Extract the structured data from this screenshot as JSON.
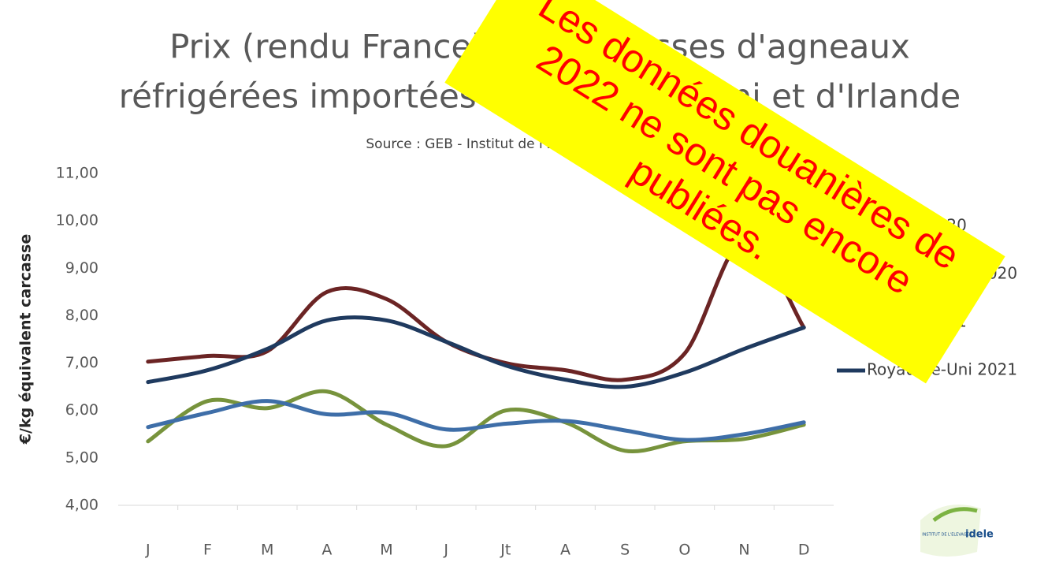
{
  "chart_data": {
    "type": "line",
    "title": [
      "Prix (rendu France) des carcasses d'agneaux",
      "réfrigérées importées du Royaume-Uni et d'Irlande"
    ],
    "subtitle": "Source : GEB - Institut de l'Elevage d'après Eurostat",
    "y_label": "€/kg équivalent carcasse",
    "categories": [
      "J",
      "F",
      "M",
      "A",
      "M",
      "J",
      "Jt",
      "A",
      "S",
      "O",
      "N",
      "D"
    ],
    "series": [
      {
        "name": "Irlande 2020",
        "color": "#77933c",
        "values": [
          5.35,
          6.2,
          6.05,
          6.4,
          5.7,
          5.25,
          6.0,
          5.75,
          5.15,
          5.35,
          5.4,
          5.7
        ]
      },
      {
        "name": "Royaume-Uni 2020",
        "color": "#3e6ea8",
        "values": [
          5.65,
          5.95,
          6.2,
          5.92,
          5.95,
          5.6,
          5.72,
          5.78,
          5.58,
          5.38,
          5.5,
          5.75
        ]
      },
      {
        "name": "Irlande 2021",
        "color": "#6b2424",
        "values": [
          7.03,
          7.15,
          7.25,
          8.5,
          8.35,
          7.45,
          7.0,
          6.85,
          6.65,
          7.2,
          9.6,
          7.75
        ]
      },
      {
        "name": "Royaume-Uni 2021",
        "color": "#1f3a5f",
        "values": [
          6.6,
          6.85,
          7.3,
          7.9,
          7.9,
          7.45,
          6.95,
          6.65,
          6.5,
          6.8,
          7.3,
          7.75
        ]
      }
    ],
    "ylim": [
      4,
      11
    ],
    "yticks": [
      {
        "value": 4,
        "label": "4,00"
      },
      {
        "value": 5,
        "label": "5,00"
      },
      {
        "value": 6,
        "label": "6,00"
      },
      {
        "value": 7,
        "label": "7,00"
      },
      {
        "value": 8,
        "label": "8,00"
      },
      {
        "value": 9,
        "label": "9,00"
      },
      {
        "value": 10,
        "label": "10,00"
      },
      {
        "value": 11,
        "label": "11,00"
      }
    ],
    "grid": false,
    "legend": "right",
    "annotation": [
      "Les données douanières de",
      "2022 ne sont pas encore",
      "publiées."
    ],
    "logo": [
      "INSTITUT DE L'ELEVAGE",
      "idele"
    ]
  }
}
